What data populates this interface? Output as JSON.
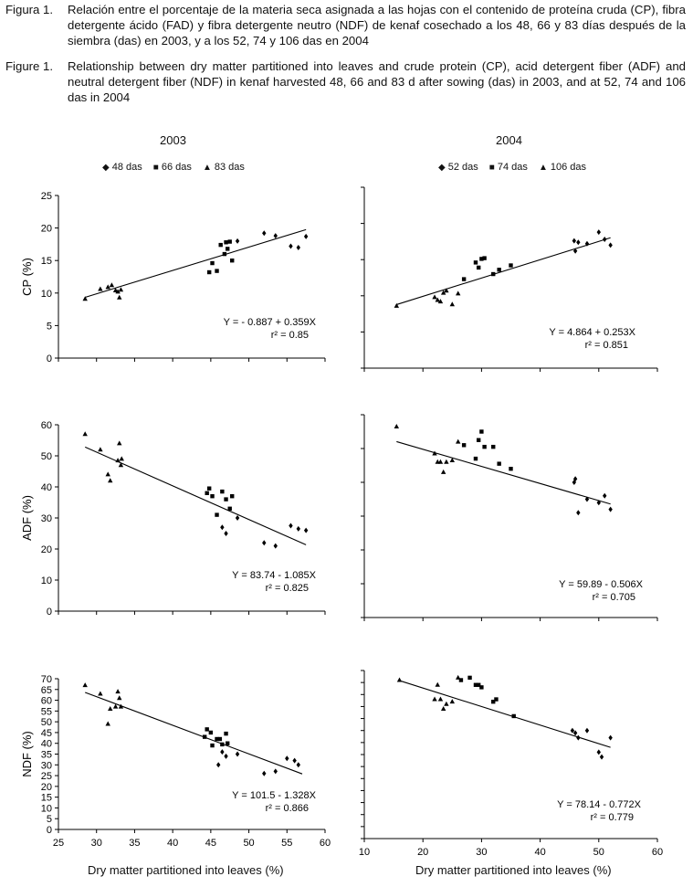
{
  "captions": {
    "es": {
      "label": "Figura 1.",
      "text": "Relación entre el porcentaje de la materia seca asignada a las hojas con el contenido de proteína cruda (CP), fibra detergente ácido (FAD) y fibra detergente neutro (NDF) de kenaf cosechado a los 48, 66 y 83 días después de la siembra (das) en 2003, y a los 52, 74 y 106 das en 2004"
    },
    "en": {
      "label": "Figure 1.",
      "text": "Relationship between dry matter partitioned into leaves and crude protein (CP), acid detergent fiber (ADF) and neutral detergent fiber (NDF) in kenaf harvested 48, 66 and 83 d after sowing (das) in 2003, and at 52, 74 and 106 das in 2004"
    }
  },
  "columns": [
    {
      "year": "2003",
      "legend": [
        "48 das",
        "66 das",
        "83 das"
      ]
    },
    {
      "year": "2004",
      "legend": [
        "52 das",
        "74 das",
        "106 das"
      ]
    }
  ],
  "x_axis_label": "Dry matter partitioned into leaves (%)",
  "chart_data": [
    {
      "type": "scatter",
      "column": "2003",
      "ylabel": "CP (%)",
      "xlim": [
        25,
        60
      ],
      "ylim": [
        0,
        25
      ],
      "xticks": [
        25,
        30,
        35,
        40,
        45,
        50,
        55,
        60
      ],
      "yticks": [
        0,
        5,
        10,
        15,
        20,
        25
      ],
      "series": [
        {
          "name": "48 das",
          "marker": "diamond",
          "x": [
            48.5,
            52.0,
            53.5,
            55.5,
            56.5,
            57.5
          ],
          "y": [
            18.0,
            19.2,
            18.8,
            17.2,
            17.0,
            18.7
          ]
        },
        {
          "name": "66 das",
          "marker": "square",
          "x": [
            44.8,
            45.2,
            45.8,
            46.3,
            46.8,
            47.0,
            47.2,
            47.5,
            47.8
          ],
          "y": [
            13.2,
            14.6,
            13.4,
            17.4,
            16.0,
            17.8,
            16.8,
            17.9,
            15.0
          ]
        },
        {
          "name": "83 das",
          "marker": "triangle",
          "x": [
            28.5,
            30.5,
            31.5,
            32.0,
            32.5,
            32.8,
            33.0,
            33.2
          ],
          "y": [
            9.1,
            10.6,
            10.9,
            11.2,
            10.4,
            10.2,
            9.3,
            10.5
          ]
        }
      ],
      "fit": {
        "intercept": -0.887,
        "slope": 0.359,
        "x_range": [
          28.5,
          57.5
        ]
      },
      "equation": "Y = - 0.887 + 0.359X",
      "r2": "r² = 0.85",
      "xtick_labels": false
    },
    {
      "type": "scatter",
      "column": "2004",
      "ylabel": "",
      "xlim": [
        10,
        60
      ],
      "ylim": [
        0,
        25
      ],
      "xticks": [
        10,
        20,
        30,
        40,
        50,
        60
      ],
      "yticks": [
        0,
        5,
        10,
        15,
        20,
        25
      ],
      "series": [
        {
          "name": "52 das",
          "marker": "diamond",
          "x": [
            45.8,
            46.0,
            46.5,
            48.0,
            50.0,
            51.0,
            52.0
          ],
          "y": [
            17.6,
            16.2,
            17.4,
            17.2,
            18.8,
            17.8,
            17.0
          ]
        },
        {
          "name": "74 das",
          "marker": "square",
          "x": [
            27.0,
            29.0,
            29.5,
            30.0,
            30.5,
            32.0,
            33.0,
            35.0
          ],
          "y": [
            12.3,
            14.6,
            13.9,
            15.1,
            15.2,
            13.0,
            13.6,
            14.2
          ]
        },
        {
          "name": "106 das",
          "marker": "triangle",
          "x": [
            15.5,
            22.0,
            22.5,
            23.0,
            23.5,
            24.0,
            25.0,
            26.0
          ],
          "y": [
            8.6,
            9.8,
            9.4,
            9.2,
            10.4,
            10.7,
            8.8,
            10.3
          ]
        }
      ],
      "fit": {
        "intercept": 4.864,
        "slope": 0.253,
        "x_range": [
          15.5,
          52.0
        ]
      },
      "equation": "Y = 4.864 + 0.253X",
      "r2": "r² = 0.851",
      "xtick_labels": false
    },
    {
      "type": "scatter",
      "column": "2003",
      "ylabel": "ADF (%)",
      "xlim": [
        25,
        60
      ],
      "ylim": [
        0,
        60
      ],
      "xticks": [
        25,
        30,
        35,
        40,
        45,
        50,
        55,
        60
      ],
      "yticks": [
        0,
        10,
        20,
        30,
        40,
        50,
        60
      ],
      "series": [
        {
          "name": "48 das",
          "marker": "diamond",
          "x": [
            46.5,
            47.0,
            48.5,
            52.0,
            53.5,
            55.5,
            56.5,
            57.5
          ],
          "y": [
            27.0,
            25.0,
            30.0,
            22.0,
            21.0,
            27.5,
            26.5,
            26.0
          ]
        },
        {
          "name": "66 das",
          "marker": "square",
          "x": [
            44.5,
            44.8,
            45.2,
            45.8,
            46.5,
            47.0,
            47.5,
            47.8
          ],
          "y": [
            38.0,
            39.5,
            37.0,
            31.0,
            38.5,
            36.0,
            33.0,
            37.0
          ]
        },
        {
          "name": "83 das",
          "marker": "triangle",
          "x": [
            28.5,
            30.5,
            31.5,
            31.8,
            32.8,
            33.0,
            33.2,
            33.3
          ],
          "y": [
            57.0,
            52.0,
            44.0,
            42.0,
            48.5,
            54.0,
            47.0,
            49.0
          ]
        }
      ],
      "fit": {
        "intercept": 83.74,
        "slope": -1.085,
        "x_range": [
          28.5,
          57.5
        ]
      },
      "equation": "Y = 83.74 - 1.085X",
      "r2": "r² = 0.825",
      "xtick_labels": false
    },
    {
      "type": "scatter",
      "column": "2004",
      "ylabel": "",
      "xlim": [
        10,
        60
      ],
      "ylim": [
        0,
        60
      ],
      "xticks": [
        10,
        20,
        30,
        40,
        50,
        60
      ],
      "yticks": [
        0,
        10,
        20,
        30,
        40,
        50,
        60
      ],
      "series": [
        {
          "name": "52 das",
          "marker": "diamond",
          "x": [
            45.8,
            46.0,
            46.5,
            48.0,
            50.0,
            51.0,
            52.0
          ],
          "y": [
            40.0,
            41.0,
            31.0,
            35.0,
            34.0,
            36.0,
            32.0
          ]
        },
        {
          "name": "74 das",
          "marker": "square",
          "x": [
            27.0,
            29.0,
            29.5,
            30.0,
            30.5,
            32.0,
            33.0,
            35.0
          ],
          "y": [
            51.0,
            47.0,
            52.5,
            55.0,
            50.5,
            50.5,
            45.5,
            44.0
          ]
        },
        {
          "name": "106 das",
          "marker": "triangle",
          "x": [
            15.5,
            22.0,
            22.5,
            23.0,
            23.5,
            24.0,
            25.0,
            26.0
          ],
          "y": [
            56.5,
            48.5,
            46.0,
            46.0,
            43.0,
            46.0,
            46.5,
            52.0
          ]
        }
      ],
      "fit": {
        "intercept": 59.89,
        "slope": -0.506,
        "x_range": [
          15.5,
          52.0
        ]
      },
      "equation": "Y = 59.89 - 0.506X",
      "r2": "r² = 0.705",
      "xtick_labels": false
    },
    {
      "type": "scatter",
      "column": "2003",
      "ylabel": "NDF (%)",
      "xlim": [
        25,
        60
      ],
      "ylim": [
        0,
        70
      ],
      "xticks": [
        25,
        30,
        35,
        40,
        45,
        50,
        55,
        60
      ],
      "yticks": [
        0,
        5,
        10,
        15,
        20,
        25,
        30,
        35,
        40,
        45,
        50,
        55,
        60,
        65,
        70
      ],
      "series": [
        {
          "name": "48 das",
          "marker": "diamond",
          "x": [
            46.0,
            46.5,
            47.0,
            48.5,
            52.0,
            53.5,
            55.0,
            56.0,
            56.5
          ],
          "y": [
            30.0,
            36.0,
            34.0,
            35.0,
            26.0,
            27.0,
            33.0,
            32.0,
            30.0
          ]
        },
        {
          "name": "66 das",
          "marker": "square",
          "x": [
            44.2,
            44.5,
            45.0,
            45.2,
            45.8,
            46.2,
            46.5,
            47.0,
            47.2
          ],
          "y": [
            43.0,
            46.5,
            45.0,
            39.0,
            42.0,
            42.0,
            39.5,
            44.5,
            40.0
          ]
        },
        {
          "name": "83 das",
          "marker": "triangle",
          "x": [
            28.5,
            30.5,
            31.5,
            31.8,
            32.5,
            32.8,
            33.0,
            33.2
          ],
          "y": [
            67.0,
            63.0,
            49.0,
            56.0,
            57.0,
            64.0,
            61.0,
            57.0
          ]
        }
      ],
      "fit": {
        "intercept": 101.5,
        "slope": -1.328,
        "x_range": [
          28.5,
          57.0
        ]
      },
      "equation": "Y = 101.5 - 1.328X",
      "r2": "r² = 0.866",
      "xtick_labels": true
    },
    {
      "type": "scatter",
      "column": "2004",
      "ylabel": "",
      "xlim": [
        10,
        60
      ],
      "ylim": [
        0,
        70
      ],
      "xticks": [
        10,
        20,
        30,
        40,
        50,
        60
      ],
      "yticks": [
        0,
        5,
        10,
        15,
        20,
        25,
        30,
        35,
        40,
        45,
        50,
        55,
        60,
        65,
        70
      ],
      "series": [
        {
          "name": "52 das",
          "marker": "diamond",
          "x": [
            45.5,
            46.0,
            46.5,
            48.0,
            50.0,
            50.5,
            52.0
          ],
          "y": [
            45.0,
            44.0,
            42.0,
            45.0,
            36.0,
            34.0,
            42.0
          ]
        },
        {
          "name": "74 das",
          "marker": "square",
          "x": [
            26.5,
            28.0,
            29.0,
            29.5,
            30.0,
            32.0,
            32.5,
            35.5
          ],
          "y": [
            66.0,
            67.0,
            64.0,
            64.0,
            63.0,
            57.0,
            58.0,
            51.0
          ]
        },
        {
          "name": "106 das",
          "marker": "triangle",
          "x": [
            16.0,
            22.0,
            22.5,
            23.0,
            23.5,
            24.0,
            25.0,
            26.0
          ],
          "y": [
            66.0,
            58.0,
            64.0,
            58.0,
            54.0,
            56.0,
            57.0,
            67.0
          ]
        }
      ],
      "fit": {
        "intercept": 78.14,
        "slope": -0.772,
        "x_range": [
          16.0,
          52.0
        ]
      },
      "equation": "Y = 78.14 - 0.772X",
      "r2": "r² = 0.779",
      "xtick_labels": true
    }
  ]
}
